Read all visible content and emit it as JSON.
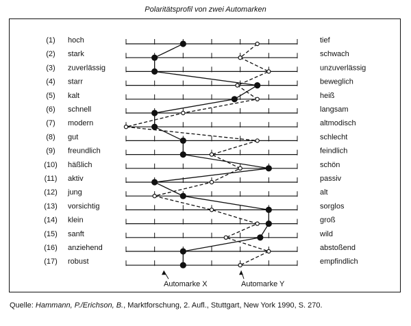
{
  "title": "Polaritätsprofil von zwei Automarken",
  "source": {
    "prefix": "Quelle: ",
    "authors": "Hammann, P./Erichson, B.",
    "rest": ", Marktforschung, 2. Aufl., Stuttgart, New York 1990, S. 270."
  },
  "chart_data": {
    "type": "line",
    "orientation": "horizontal-profile",
    "scale_points": 7,
    "xlim": [
      1,
      7
    ],
    "items": [
      {
        "num": "(1)",
        "left": "hoch",
        "right": "tief"
      },
      {
        "num": "(2)",
        "left": "stark",
        "right": "schwach"
      },
      {
        "num": "(3)",
        "left": "zuverlässig",
        "right": "unzuverlässig"
      },
      {
        "num": "(4)",
        "left": "starr",
        "right": "beweglich"
      },
      {
        "num": "(5)",
        "left": "kalt",
        "right": "heiß"
      },
      {
        "num": "(6)",
        "left": "schnell",
        "right": "langsam"
      },
      {
        "num": "(7)",
        "left": "modern",
        "right": "altmodisch"
      },
      {
        "num": "(8)",
        "left": "gut",
        "right": "schlecht"
      },
      {
        "num": "(9)",
        "left": "freundlich",
        "right": "feindlich"
      },
      {
        "num": "(10)",
        "left": "häßlich",
        "right": "schön"
      },
      {
        "num": "(11)",
        "left": "aktiv",
        "right": "passiv"
      },
      {
        "num": "(12)",
        "left": "jung",
        "right": "alt"
      },
      {
        "num": "(13)",
        "left": "vorsichtig",
        "right": "sorglos"
      },
      {
        "num": "(14)",
        "left": "klein",
        "right": "groß"
      },
      {
        "num": "(15)",
        "left": "sanft",
        "right": "wild"
      },
      {
        "num": "(16)",
        "left": "anziehend",
        "right": "abstoßend"
      },
      {
        "num": "(17)",
        "left": "robust",
        "right": "empfindlich"
      }
    ],
    "series": [
      {
        "name": "Automarke X",
        "style": "solid",
        "marker": "filled-circle",
        "values": [
          3.0,
          2.0,
          2.0,
          5.6,
          4.8,
          2.0,
          2.0,
          3.0,
          3.0,
          6.0,
          2.0,
          3.0,
          6.0,
          6.0,
          5.7,
          3.0,
          3.0
        ]
      },
      {
        "name": "Automarke Y",
        "style": "dashed",
        "marker": "open-circle",
        "values": [
          5.6,
          5.0,
          6.0,
          4.9,
          5.6,
          3.0,
          1.0,
          5.6,
          4.0,
          5.0,
          4.0,
          2.0,
          4.0,
          5.6,
          4.5,
          6.0,
          5.0
        ]
      }
    ],
    "legend": {
      "x_label": "Automarke X",
      "y_label": "Automarke Y",
      "placement": "bottom"
    }
  }
}
